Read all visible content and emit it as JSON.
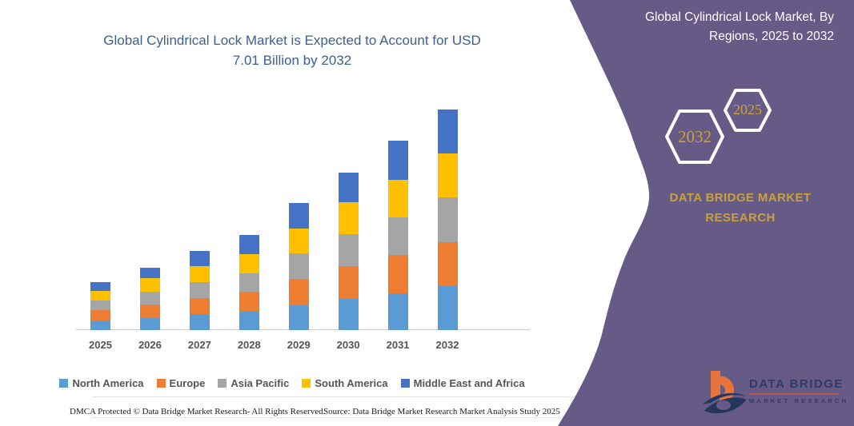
{
  "main_title": {
    "line1": "Global Cylindrical Lock Market is Expected to Account for USD",
    "line2": "7.01 Billion by 2032"
  },
  "chart_data": {
    "type": "bar",
    "stacked": true,
    "title": "Global Cylindrical Lock Market is Expected to Account for USD 7.01 Billion by 2032",
    "unit": "USD Billion",
    "categories": [
      "2025",
      "2026",
      "2027",
      "2028",
      "2029",
      "2030",
      "2031",
      "2032"
    ],
    "series": [
      {
        "name": "North America",
        "color": "#5B9BD5",
        "values": [
          0.27,
          0.38,
          0.51,
          0.61,
          0.78,
          0.98,
          1.17,
          1.4
        ]
      },
      {
        "name": "Europe",
        "color": "#ED7D31",
        "values": [
          0.37,
          0.42,
          0.51,
          0.62,
          0.85,
          1.04,
          1.22,
          1.4
        ]
      },
      {
        "name": "Asia Pacific",
        "color": "#A5A5A5",
        "values": [
          0.3,
          0.41,
          0.51,
          0.57,
          0.81,
          1.02,
          1.19,
          1.42
        ]
      },
      {
        "name": "South America",
        "color": "#FFC000",
        "values": [
          0.3,
          0.44,
          0.51,
          0.62,
          0.78,
          1.02,
          1.19,
          1.4
        ]
      },
      {
        "name": "Middle East and Africa",
        "color": "#4472C4",
        "values": [
          0.28,
          0.34,
          0.47,
          0.59,
          0.82,
          0.93,
          1.24,
          1.39
        ]
      }
    ],
    "totals": [
      1.52,
      1.99,
      2.51,
      3.01,
      4.04,
      4.99,
      6.01,
      7.01
    ],
    "ylim": [
      0,
      7.5
    ],
    "grid": false,
    "legend_position": "bottom",
    "axis_labels_shown": "x-only"
  },
  "panel": {
    "title_line1": "Global Cylindrical Lock Market, By",
    "title_line2": "Regions, 2025 to 2032",
    "hexagon_front_year": "2025",
    "hexagon_back_year": "2032",
    "brand_line1": "DATA BRIDGE MARKET",
    "brand_line2": "RESEARCH",
    "bg_color": "#665A87",
    "accent_gold": "#C9A13B"
  },
  "logo": {
    "text_line1": "DATA BRIDGE",
    "text_line2": "MARKET RESEARCH"
  },
  "footer": {
    "left": "DMCA Protected © Data Bridge Market Research-  All Rights Reserved.",
    "right": "Source: Data Bridge Market Research  Market Analysis Study 2025"
  }
}
